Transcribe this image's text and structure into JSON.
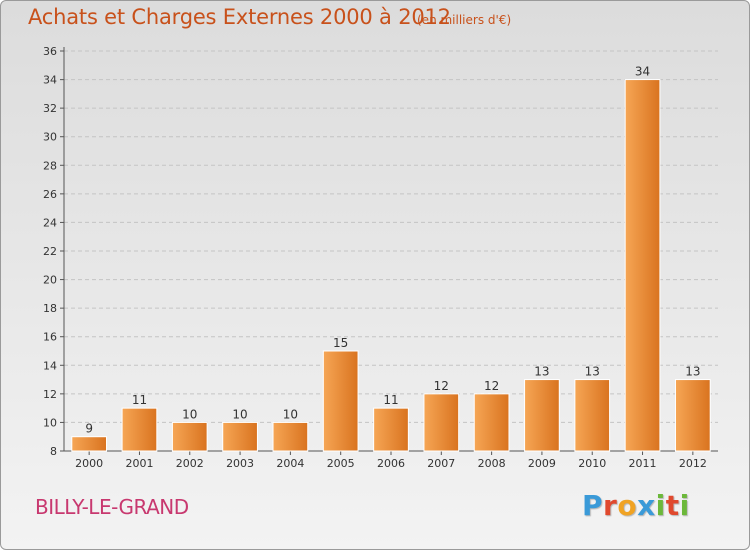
{
  "header": {
    "title": "Achats et Charges Externes 2000 à 2012",
    "subtitle": "(en milliers d'€)"
  },
  "footer": {
    "location": "BILLY-LE-GRAND",
    "logo_letters": [
      "P",
      "r",
      "o",
      "x",
      "i",
      "t",
      "i"
    ]
  },
  "colors": {
    "bar_light": "#f6a655",
    "bar_dark": "#d9731f",
    "title": "#c8511b",
    "location": "#c8386f"
  },
  "chart_data": {
    "type": "bar",
    "title": "Achats et Charges Externes 2000 à 2012",
    "subtitle": "(en milliers d'€)",
    "xlabel": "",
    "ylabel": "",
    "categories": [
      "2000",
      "2001",
      "2002",
      "2003",
      "2004",
      "2005",
      "2006",
      "2007",
      "2008",
      "2009",
      "2010",
      "2011",
      "2012"
    ],
    "values": [
      9,
      11,
      10,
      10,
      10,
      15,
      11,
      12,
      12,
      13,
      13,
      34,
      13
    ],
    "ylim": [
      8,
      36
    ],
    "yticks": [
      8,
      10,
      12,
      14,
      16,
      18,
      20,
      22,
      24,
      26,
      28,
      30,
      32,
      34,
      36
    ],
    "grid": true,
    "legend": "none"
  }
}
